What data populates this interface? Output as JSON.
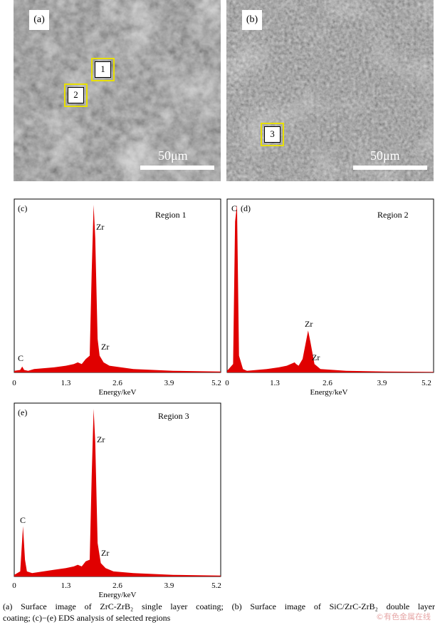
{
  "sem_panels": [
    {
      "label": "(a)",
      "scale_label": "50μm",
      "regions": [
        "1",
        "2"
      ]
    },
    {
      "label": "(b)",
      "scale_label": "50μm",
      "regions": [
        "3"
      ]
    }
  ],
  "chart_data": [
    {
      "type": "area",
      "panel_label": "(c)",
      "title": "Region 1",
      "xlabel": "Energy/keV",
      "ylabel": "",
      "xlim": [
        0,
        5.2
      ],
      "ylim": [
        0,
        1
      ],
      "xticks": [
        "0",
        "1.3",
        "2.6",
        "3.9",
        "5.2"
      ],
      "x": [
        0,
        0.15,
        0.2,
        0.25,
        0.35,
        0.5,
        1.0,
        1.3,
        1.5,
        1.6,
        1.7,
        1.8,
        1.9,
        1.95,
        2.0,
        2.04,
        2.1,
        2.15,
        2.25,
        2.4,
        3.0,
        4.0,
        5.2
      ],
      "values": [
        0.01,
        0.015,
        0.035,
        0.015,
        0.01,
        0.02,
        0.03,
        0.04,
        0.05,
        0.06,
        0.05,
        0.08,
        0.1,
        0.6,
        1.0,
        0.8,
        0.2,
        0.1,
        0.06,
        0.04,
        0.02,
        0.01,
        0.005
      ],
      "annotations": [
        "C",
        "Zr",
        "Zr"
      ]
    },
    {
      "type": "area",
      "panel_label": "(d)",
      "title": "Region 2",
      "xlabel": "Energy/keV",
      "ylabel": "",
      "xlim": [
        0,
        5.2
      ],
      "ylim": [
        0,
        1
      ],
      "xticks": [
        "0",
        "1.3",
        "2.6",
        "3.9",
        "5.2"
      ],
      "x": [
        0,
        0.15,
        0.2,
        0.25,
        0.3,
        0.4,
        0.5,
        1.0,
        1.3,
        1.5,
        1.7,
        1.74,
        1.8,
        1.9,
        2.0,
        2.04,
        2.1,
        2.2,
        2.35,
        3.0,
        4.0,
        5.2
      ],
      "values": [
        0.01,
        0.05,
        0.9,
        1.0,
        0.1,
        0.02,
        0.01,
        0.02,
        0.03,
        0.04,
        0.06,
        0.05,
        0.04,
        0.08,
        0.2,
        0.25,
        0.18,
        0.05,
        0.02,
        0.01,
        0.005,
        0.003
      ],
      "annotations": [
        "C",
        "Zr",
        "Zr"
      ]
    },
    {
      "type": "area",
      "panel_label": "(e)",
      "title": "Region 3",
      "xlabel": "Energy/keV",
      "ylabel": "",
      "xlim": [
        0,
        5.2
      ],
      "ylim": [
        0,
        1
      ],
      "xticks": [
        "0",
        "1.3",
        "2.6",
        "3.9",
        "5.2"
      ],
      "x": [
        0,
        0.15,
        0.22,
        0.27,
        0.32,
        0.45,
        1.0,
        1.3,
        1.5,
        1.6,
        1.7,
        1.8,
        1.9,
        1.95,
        2.0,
        2.04,
        2.1,
        2.18,
        2.3,
        2.5,
        3.0,
        4.0,
        5.2
      ],
      "values": [
        0.01,
        0.03,
        0.3,
        0.1,
        0.03,
        0.02,
        0.04,
        0.05,
        0.06,
        0.07,
        0.06,
        0.09,
        0.1,
        0.6,
        1.0,
        0.8,
        0.2,
        0.08,
        0.05,
        0.03,
        0.02,
        0.01,
        0.005
      ],
      "annotations": [
        "C",
        "Zr",
        "Zr"
      ]
    }
  ],
  "caption": {
    "line1": "(a)  Surface image of ZrC-ZrB₂ single layer coating; (b) Surface image of SiC/ZrC-ZrB₂ double layer",
    "line2": "coating;  (c)−(e)  EDS  analysis  of selected regions"
  },
  "watermark": "©有色金属在线",
  "colors": {
    "spectrum": "#e00000",
    "highlight_box": "#e8e000"
  }
}
